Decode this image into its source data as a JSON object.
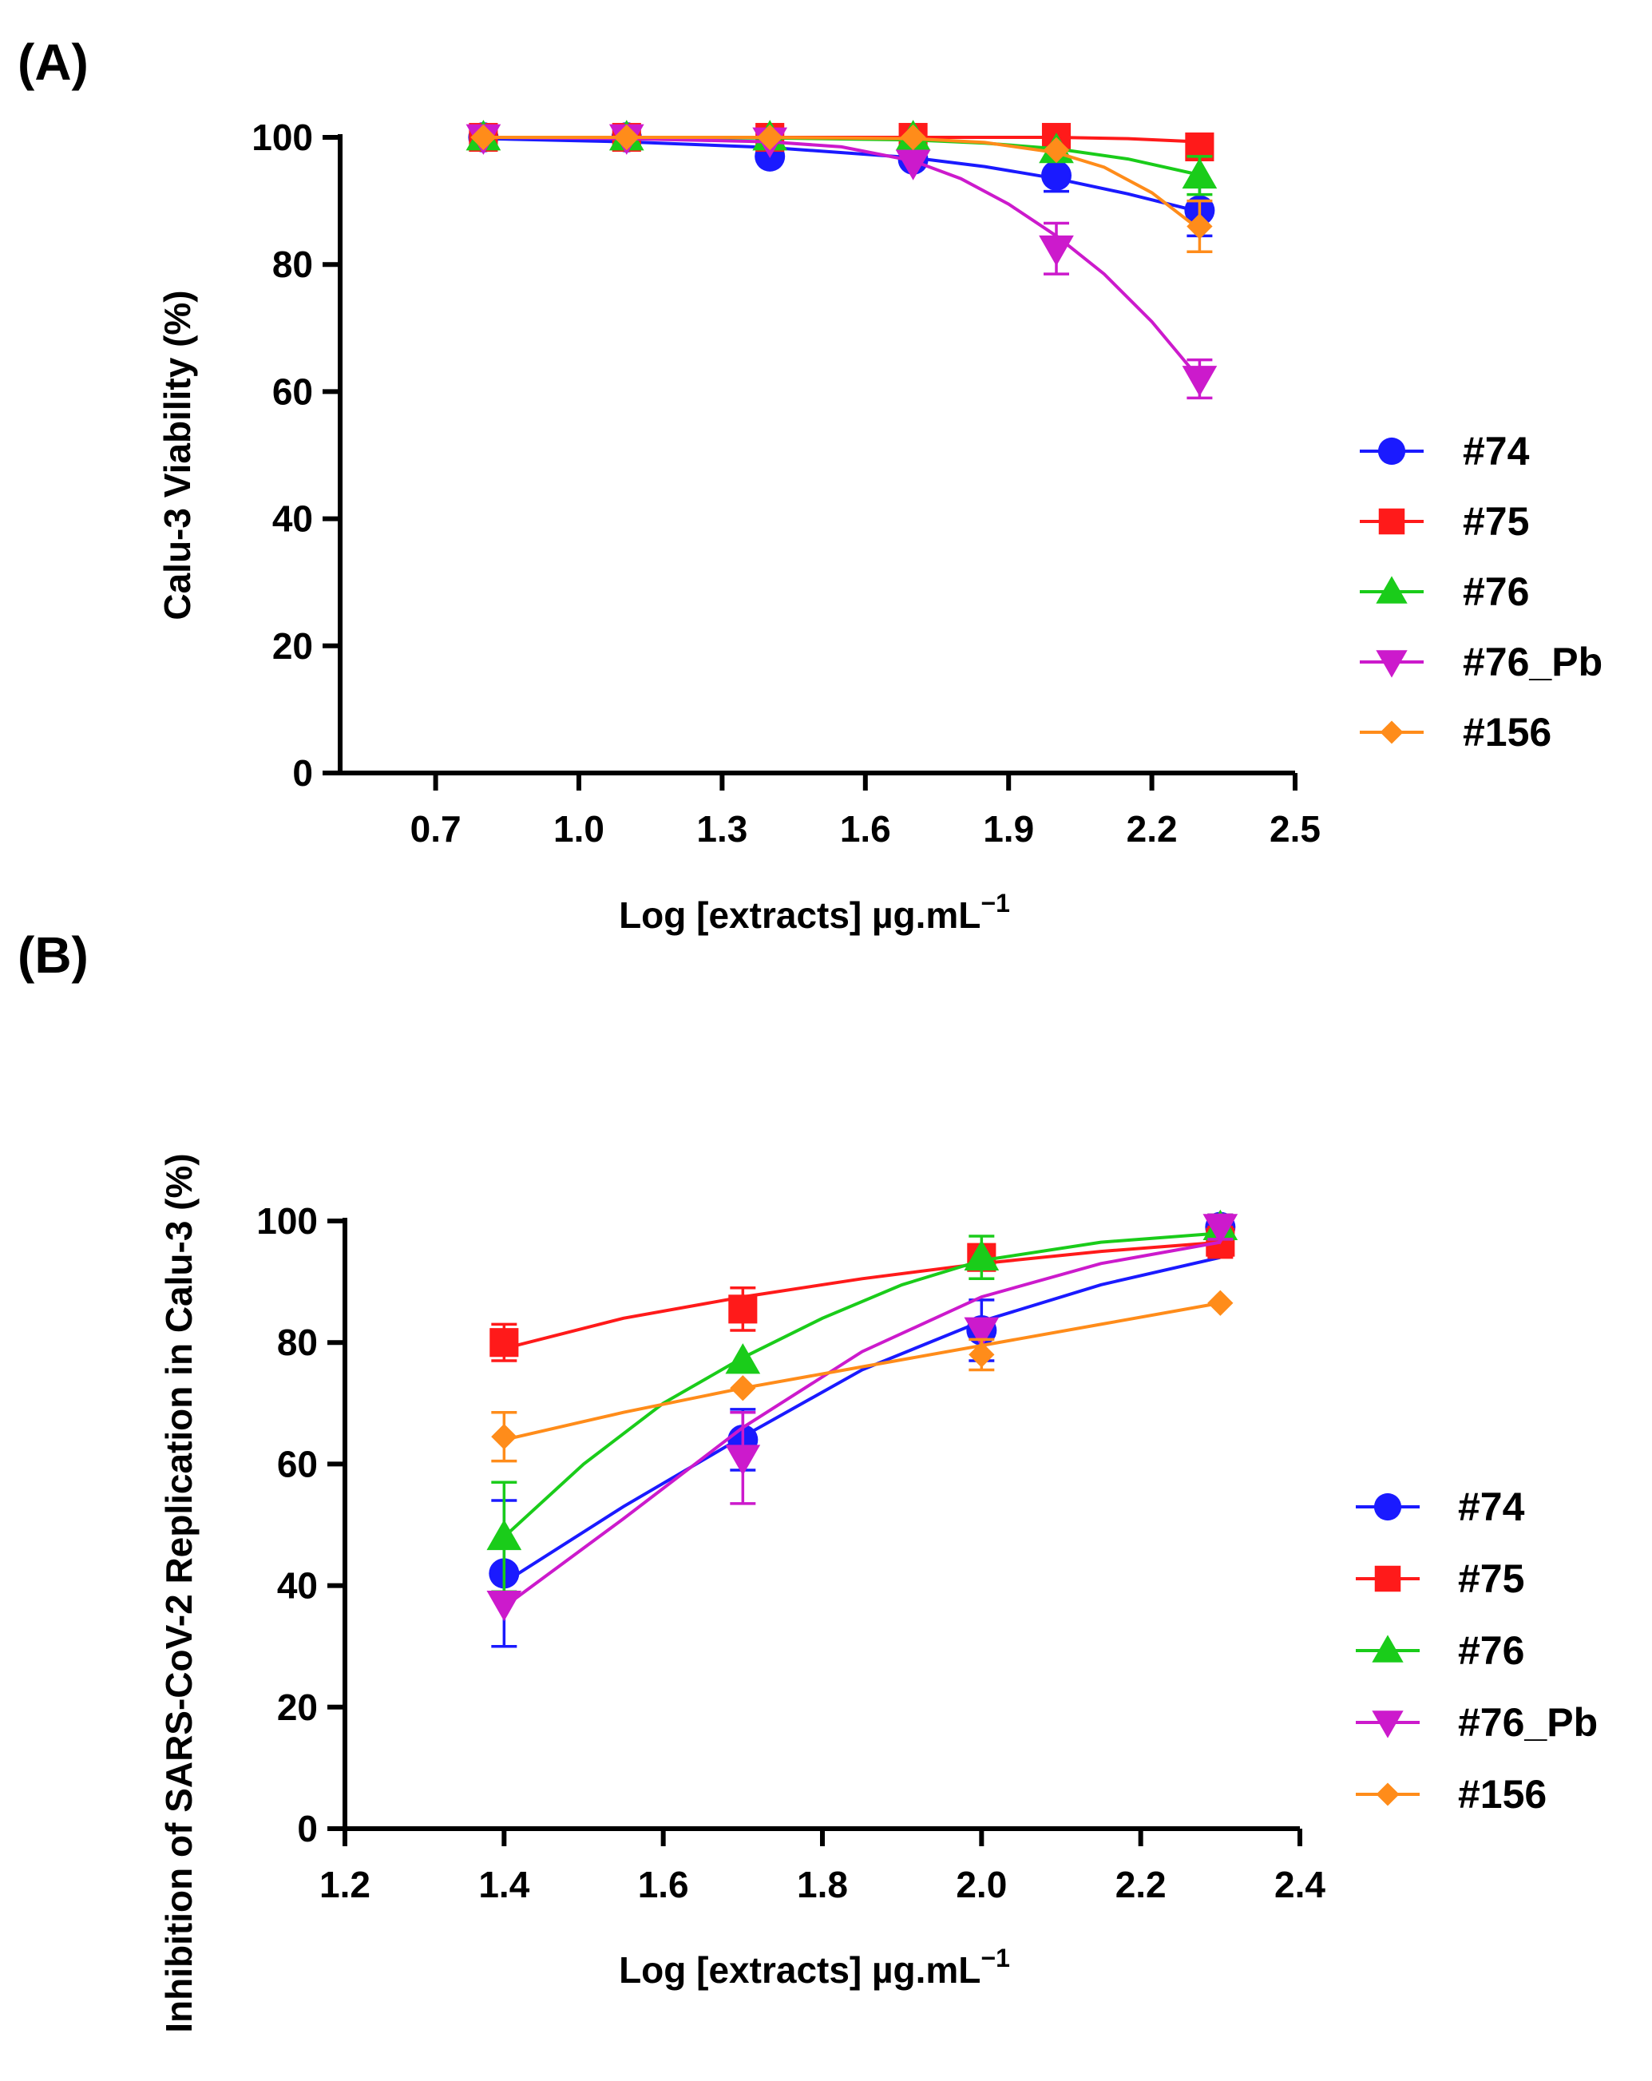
{
  "chart_data": [
    {
      "type": "scatter",
      "panel_label": "(A)",
      "title": "",
      "xlabel": "Log [extracts]  µg.mL",
      "xlabel_superscript": "−1",
      "ylabel": "Calu-3 Viability (%)",
      "xlim": [
        0.5,
        2.5
      ],
      "ylim": [
        0,
        100
      ],
      "xticks": [
        0.7,
        1.0,
        1.3,
        1.6,
        1.9,
        2.2,
        2.5
      ],
      "xtick_labels": [
        "0.7",
        "1.0",
        "1.3",
        "1.6",
        "1.9",
        "2.2",
        "2.5"
      ],
      "yticks": [
        0,
        20,
        40,
        60,
        80,
        100
      ],
      "ytick_labels": [
        "0",
        "20",
        "40",
        "60",
        "80",
        "100"
      ],
      "grid": false,
      "legend_position": "right",
      "x": [
        0.8,
        1.1,
        1.4,
        1.7,
        2.0,
        2.3
      ],
      "series": [
        {
          "name": "#74",
          "color": "#1a1aff",
          "marker": "circle",
          "values": [
            100,
            100,
            97,
            96.5,
            94,
            88.5
          ],
          "errors": [
            0,
            0,
            0,
            0,
            2.5,
            4
          ],
          "fit": [
            [
              0.8,
              99.8
            ],
            [
              1.1,
              99.3
            ],
            [
              1.4,
              98.4
            ],
            [
              1.7,
              96.8
            ],
            [
              1.85,
              95.4
            ],
            [
              2.0,
              93.5
            ],
            [
              2.15,
              91.1
            ],
            [
              2.3,
              88.3
            ]
          ]
        },
        {
          "name": "#75",
          "color": "#ff1a1a",
          "marker": "square",
          "values": [
            100,
            100,
            100,
            100,
            100,
            98.5
          ],
          "errors": [
            0,
            0,
            0,
            0,
            0,
            2
          ],
          "fit": [
            [
              0.8,
              100
            ],
            [
              1.4,
              100
            ],
            [
              2.0,
              100
            ],
            [
              2.15,
              99.8
            ],
            [
              2.3,
              99.3
            ]
          ]
        },
        {
          "name": "#76",
          "color": "#1acc1a",
          "marker": "triangle-up",
          "values": [
            100,
            100,
            100,
            100,
            98,
            94
          ],
          "errors": [
            0,
            0,
            0,
            0,
            0,
            3
          ],
          "fit": [
            [
              0.8,
              100
            ],
            [
              1.4,
              99.9
            ],
            [
              1.7,
              99.6
            ],
            [
              1.85,
              99.1
            ],
            [
              2.0,
              98.2
            ],
            [
              2.15,
              96.6
            ],
            [
              2.3,
              94.1
            ]
          ]
        },
        {
          "name": "#76_Pb",
          "color": "#cc1acc",
          "marker": "triangle-down",
          "values": [
            100,
            100,
            99.5,
            96,
            82.5,
            62
          ],
          "errors": [
            0,
            0,
            0,
            0,
            4,
            3
          ],
          "fit": [
            [
              0.8,
              100
            ],
            [
              1.1,
              99.8
            ],
            [
              1.4,
              99.3
            ],
            [
              1.55,
              98.5
            ],
            [
              1.7,
              96.3
            ],
            [
              1.8,
              93.5
            ],
            [
              1.9,
              89.5
            ],
            [
              2.0,
              84.5
            ],
            [
              2.1,
              78.5
            ],
            [
              2.2,
              71
            ],
            [
              2.3,
              62
            ]
          ]
        },
        {
          "name": "#156",
          "color": "#ff8c1a",
          "marker": "diamond",
          "values": [
            100,
            100,
            100,
            100,
            98,
            86
          ],
          "errors": [
            0,
            0,
            0,
            0,
            0,
            4
          ],
          "fit": [
            [
              0.8,
              100
            ],
            [
              1.4,
              100
            ],
            [
              1.7,
              99.8
            ],
            [
              1.85,
              99.2
            ],
            [
              2.0,
              97.6
            ],
            [
              2.1,
              95.3
            ],
            [
              2.2,
              91.3
            ],
            [
              2.3,
              85.5
            ]
          ]
        }
      ]
    },
    {
      "type": "scatter",
      "panel_label": "(B)",
      "title": "",
      "xlabel": "Log [extracts]  µg.mL",
      "xlabel_superscript": "−1",
      "ylabel": "Inhibition of SARS-CoV-2 Replication in Calu-3 (%)",
      "xlim": [
        1.2,
        2.4
      ],
      "ylim": [
        0,
        100
      ],
      "xticks": [
        1.2,
        1.4,
        1.6,
        1.8,
        2.0,
        2.2,
        2.4
      ],
      "xtick_labels": [
        "1.2",
        "1.4",
        "1.6",
        "1.8",
        "2.0",
        "2.2",
        "2.4"
      ],
      "yticks": [
        0,
        20,
        40,
        60,
        80,
        100
      ],
      "ytick_labels": [
        "0",
        "20",
        "40",
        "60",
        "80",
        "100"
      ],
      "grid": false,
      "legend_position": "right",
      "x": [
        1.4,
        1.7,
        2.0,
        2.3
      ],
      "series": [
        {
          "name": "#74",
          "color": "#1a1aff",
          "marker": "circle",
          "values": [
            42,
            64,
            82,
            99
          ],
          "errors": [
            12,
            5,
            5,
            2
          ],
          "fit": [
            [
              1.4,
              40.5
            ],
            [
              1.55,
              53
            ],
            [
              1.7,
              64.5
            ],
            [
              1.85,
              75.5
            ],
            [
              2.0,
              83.5
            ],
            [
              2.15,
              89.5
            ],
            [
              2.3,
              94
            ]
          ]
        },
        {
          "name": "#75",
          "color": "#ff1a1a",
          "marker": "square",
          "values": [
            80,
            85.5,
            94,
            96.5
          ],
          "errors": [
            3,
            3.5,
            2,
            2.5
          ],
          "fit": [
            [
              1.4,
              79
            ],
            [
              1.55,
              84
            ],
            [
              1.7,
              87.5
            ],
            [
              1.85,
              90.5
            ],
            [
              2.0,
              93
            ],
            [
              2.15,
              95
            ],
            [
              2.3,
              96.5
            ]
          ]
        },
        {
          "name": "#76",
          "color": "#1acc1a",
          "marker": "triangle-up",
          "values": [
            48,
            77,
            94,
            99
          ],
          "errors": [
            9,
            0,
            3.5,
            2
          ],
          "fit": [
            [
              1.4,
              48
            ],
            [
              1.5,
              60
            ],
            [
              1.6,
              70
            ],
            [
              1.7,
              77.5
            ],
            [
              1.8,
              84
            ],
            [
              1.9,
              89.5
            ],
            [
              2.0,
              93.5
            ],
            [
              2.15,
              96.5
            ],
            [
              2.3,
              98
            ]
          ]
        },
        {
          "name": "#76_Pb",
          "color": "#cc1acc",
          "marker": "triangle-down",
          "values": [
            37,
            61,
            82,
            99
          ],
          "errors": [
            0,
            7.5,
            0,
            2
          ],
          "fit": [
            [
              1.4,
              36.5
            ],
            [
              1.55,
              51
            ],
            [
              1.7,
              66
            ],
            [
              1.85,
              78.5
            ],
            [
              2.0,
              87.5
            ],
            [
              2.15,
              93
            ],
            [
              2.3,
              96.5
            ]
          ]
        },
        {
          "name": "#156",
          "color": "#ff8c1a",
          "marker": "diamond",
          "values": [
            64.5,
            72.5,
            78,
            86.5
          ],
          "errors": [
            4,
            0,
            2.5,
            0
          ],
          "fit": [
            [
              1.4,
              64
            ],
            [
              1.55,
              68.5
            ],
            [
              1.7,
              72.5
            ],
            [
              1.85,
              76
            ],
            [
              2.0,
              79.5
            ],
            [
              2.15,
              83
            ],
            [
              2.3,
              86.5
            ]
          ]
        }
      ]
    }
  ]
}
